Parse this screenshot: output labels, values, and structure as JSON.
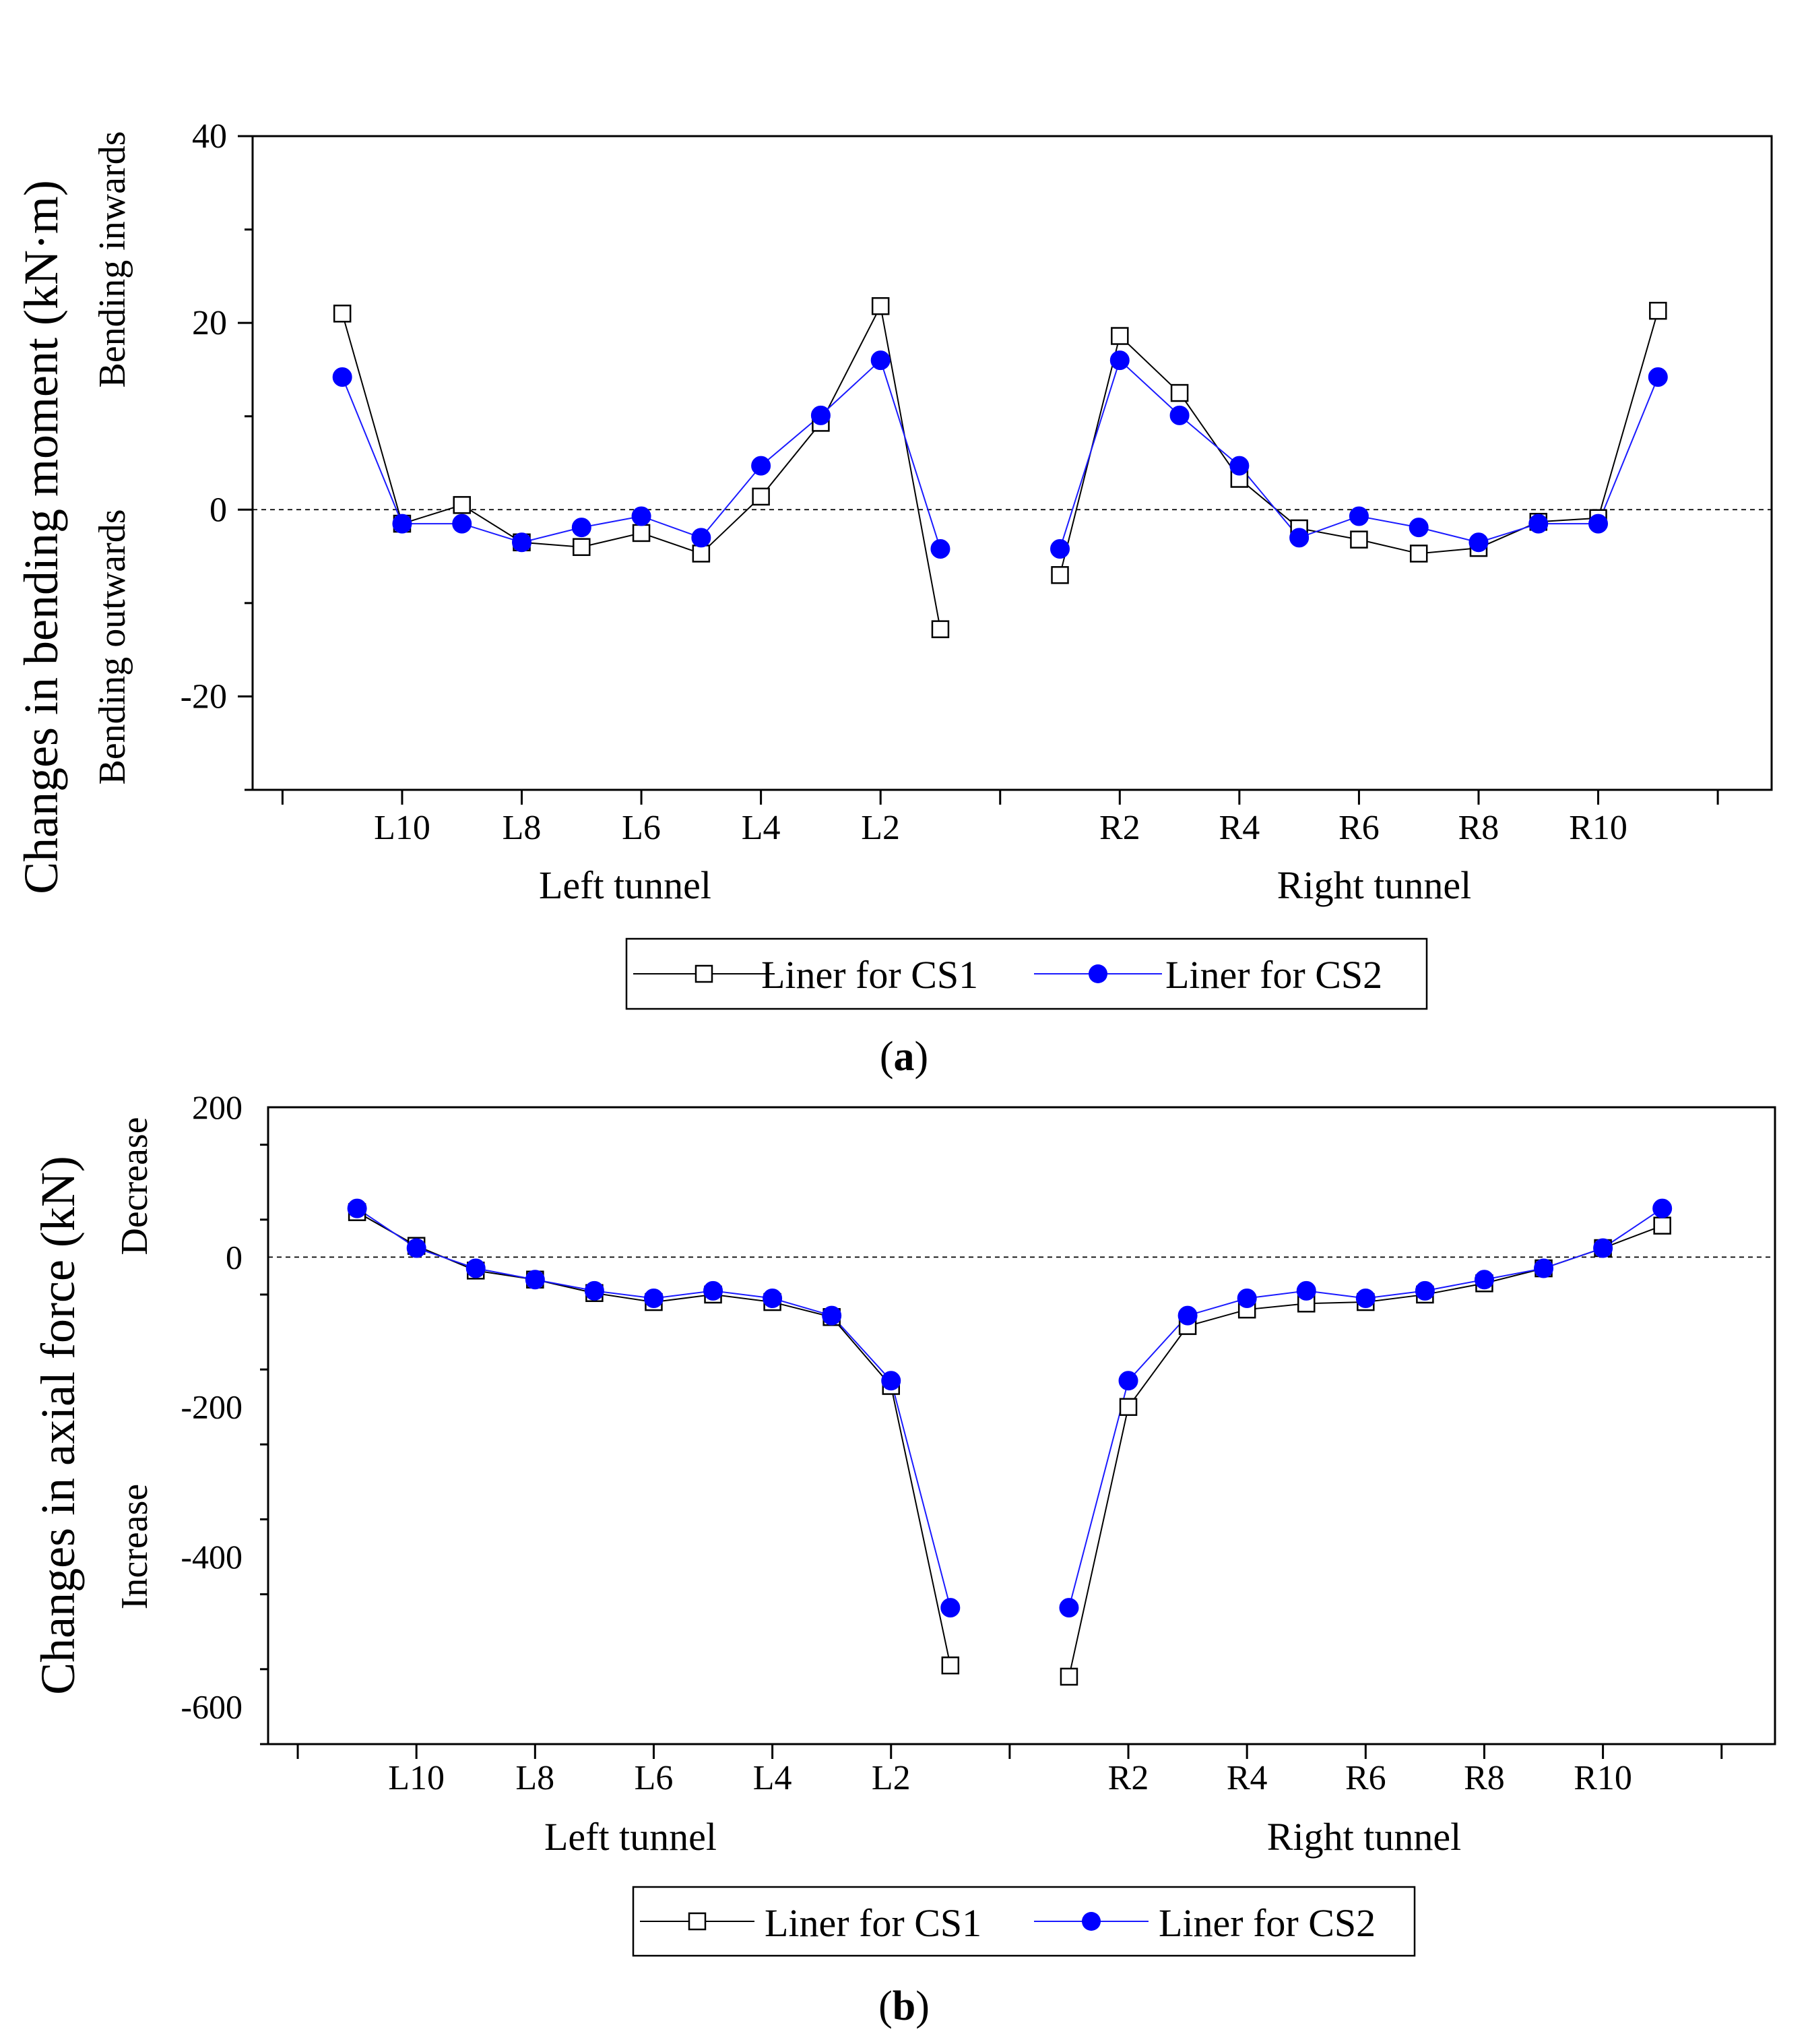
{
  "chart_data": [
    {
      "type": "line",
      "panel_label_prefix": "(",
      "panel_label_letter": "a",
      "panel_label_suffix": ")",
      "ylabel": "Changes in bending moment (kN·m)",
      "y_annotation_top": "Bending inwards",
      "y_annotation_bottom": "Bending outwards",
      "ylim": [
        -30,
        40
      ],
      "yticks": [
        -20,
        0,
        20,
        40
      ],
      "ytick_labels": [
        "-20",
        "0",
        "20",
        "40"
      ],
      "y_reference_line": 0,
      "x_labeled_ticks": [
        {
          "x": 2,
          "label": "L10"
        },
        {
          "x": 4,
          "label": "L8"
        },
        {
          "x": 6,
          "label": "L6"
        },
        {
          "x": 8,
          "label": "L4"
        },
        {
          "x": 10,
          "label": "L2"
        },
        {
          "x": 14,
          "label": "R2"
        },
        {
          "x": 16,
          "label": "R4"
        },
        {
          "x": 18,
          "label": "R6"
        },
        {
          "x": 20,
          "label": "R8"
        },
        {
          "x": 22,
          "label": "R10"
        }
      ],
      "group_labels": [
        "Left tunnel",
        "Right tunnel"
      ],
      "series": [
        {
          "name": "Liner for CS1",
          "segments": [
            {
              "x": [
                1,
                2,
                3,
                4,
                5,
                6,
                7,
                8,
                9,
                10,
                11
              ],
              "values": [
                21,
                -1.5,
                0.5,
                -3.5,
                -4,
                -2.5,
                -4.7,
                1.4,
                9.3,
                21.8,
                -12.8
              ]
            },
            {
              "x": [
                13,
                14,
                15,
                16,
                17,
                18,
                19,
                20,
                21,
                22,
                23
              ],
              "values": [
                -7,
                18.6,
                12.5,
                3.3,
                -2,
                -3.2,
                -4.7,
                -4.1,
                -1.3,
                -0.9,
                21.3
              ]
            }
          ]
        },
        {
          "name": "Liner for CS2",
          "segments": [
            {
              "x": [
                1,
                2,
                3,
                4,
                5,
                6,
                7,
                8,
                9,
                10,
                11
              ],
              "values": [
                14.2,
                -1.5,
                -1.5,
                -3.5,
                -1.9,
                -0.7,
                -3,
                4.7,
                10.1,
                16,
                -4.2
              ]
            },
            {
              "x": [
                13,
                14,
                15,
                16,
                17,
                18,
                19,
                20,
                21,
                22,
                23
              ],
              "values": [
                -4.2,
                16,
                10.1,
                4.7,
                -3,
                -0.7,
                -1.9,
                -3.5,
                -1.5,
                -1.5,
                14.2
              ]
            }
          ]
        }
      ]
    },
    {
      "type": "line",
      "panel_label_prefix": "(",
      "panel_label_letter": "b",
      "panel_label_suffix": ")",
      "ylabel": "Changes in axial force (kN)",
      "y_annotation_top": "Decrease",
      "y_annotation_bottom": "Increase",
      "ylim": [
        -650,
        200
      ],
      "yticks": [
        -600,
        -400,
        -200,
        0,
        200
      ],
      "ytick_labels": [
        "-600",
        "-400",
        "-200",
        "0",
        "200"
      ],
      "y_reference_line": 0,
      "x_labeled_ticks": [
        {
          "x": 2,
          "label": "L10"
        },
        {
          "x": 4,
          "label": "L8"
        },
        {
          "x": 6,
          "label": "L6"
        },
        {
          "x": 8,
          "label": "L4"
        },
        {
          "x": 10,
          "label": "L2"
        },
        {
          "x": 14,
          "label": "R2"
        },
        {
          "x": 16,
          "label": "R4"
        },
        {
          "x": 18,
          "label": "R6"
        },
        {
          "x": 20,
          "label": "R8"
        },
        {
          "x": 22,
          "label": "R10"
        }
      ],
      "group_labels": [
        "Left tunnel",
        "Right tunnel"
      ],
      "series": [
        {
          "name": "Liner for CS1",
          "segments": [
            {
              "x": [
                1,
                2,
                3,
                4,
                5,
                6,
                7,
                8,
                9,
                10,
                11
              ],
              "values": [
                60,
                15,
                -18,
                -30,
                -48,
                -60,
                -50,
                -60,
                -80,
                -172,
                -545
              ]
            },
            {
              "x": [
                13,
                14,
                15,
                16,
                17,
                18,
                19,
                20,
                21,
                22,
                23
              ],
              "values": [
                -560,
                -200,
                -92,
                -70,
                -62,
                -60,
                -50,
                -35,
                -15,
                12,
                42
              ]
            }
          ]
        },
        {
          "name": "Liner for CS2",
          "segments": [
            {
              "x": [
                1,
                2,
                3,
                4,
                5,
                6,
                7,
                8,
                9,
                10,
                11
              ],
              "values": [
                65,
                12,
                -15,
                -30,
                -45,
                -55,
                -45,
                -55,
                -78,
                -165,
                -468
              ]
            },
            {
              "x": [
                13,
                14,
                15,
                16,
                17,
                18,
                19,
                20,
                21,
                22,
                23
              ],
              "values": [
                -468,
                -165,
                -78,
                -55,
                -45,
                -55,
                -45,
                -30,
                -15,
                12,
                65
              ]
            }
          ]
        }
      ]
    }
  ],
  "colors": {
    "cs1": "#000000",
    "cs2": "#0000ff",
    "cs2_line": "#1a1aff"
  }
}
